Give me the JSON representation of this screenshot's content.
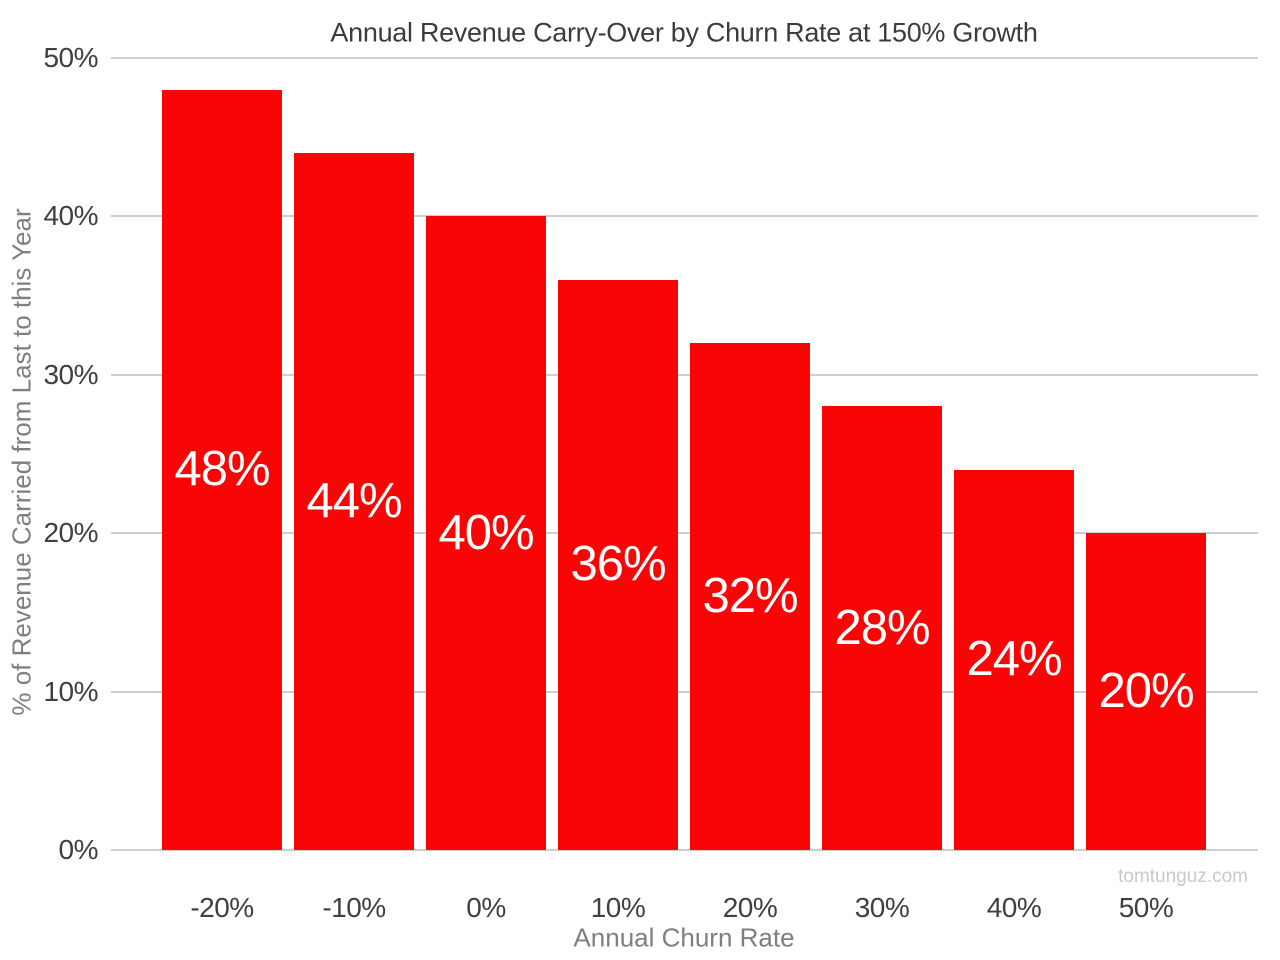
{
  "chart_data": {
    "type": "bar",
    "title": "Annual Revenue Carry-Over by Churn Rate at 150% Growth",
    "xlabel": "Annual Churn Rate",
    "ylabel": "% of Revenue Carried from Last to this Year",
    "categories": [
      "-20%",
      "-10%",
      "0%",
      "10%",
      "20%",
      "30%",
      "40%",
      "50%"
    ],
    "values": [
      48,
      44,
      40,
      36,
      32,
      28,
      24,
      20
    ],
    "bar_labels": [
      "48%",
      "44%",
      "40%",
      "36%",
      "32%",
      "28%",
      "24%",
      "20%"
    ],
    "ylim": [
      0,
      50
    ],
    "yticks": [
      0,
      10,
      20,
      30,
      40,
      50
    ],
    "ytick_labels": [
      "0%",
      "10%",
      "20%",
      "30%",
      "40%",
      "50%"
    ],
    "grid": "horizontal-only",
    "legend": "none",
    "bar_color": "#fa0505",
    "bar_label_color": "#ffffff",
    "watermark": "tomtunguz.com"
  },
  "colors": {
    "background": "#ffffff",
    "bar": "#fa0505",
    "gridline": "#cecece",
    "tick_text": "#404040",
    "axis_title_text": "#7f7f7f",
    "title_text": "#3c3c3c",
    "watermark_text": "#c9c9c9"
  }
}
